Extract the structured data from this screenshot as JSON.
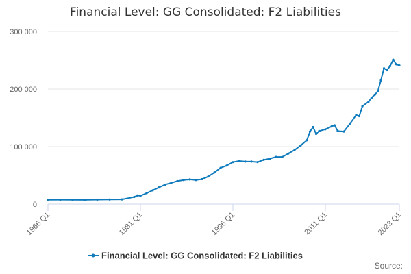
{
  "title": "Financial Level: GG Consolidated: F2 Liabilities",
  "source_label": "Source:",
  "colors": {
    "series": "#0f7bbd",
    "grid": "#e6e6e6",
    "axis": "#ccd6eb",
    "text": "#666666"
  },
  "chart_data": {
    "type": "line",
    "title": "Financial Level: GG Consolidated: F2 Liabilities",
    "xlabel": "",
    "ylabel": "",
    "x_range": [
      "1966 Q1",
      "2023 Q1"
    ],
    "xticks": [
      "1966 Q1",
      "1981 Q1",
      "1996 Q1",
      "2011 Q1",
      "2023 Q1"
    ],
    "ylim": [
      0,
      300000
    ],
    "yticks": [
      0,
      100000,
      200000,
      300000
    ],
    "ytick_labels": [
      "0",
      "100 000",
      "200 000",
      "300 000"
    ],
    "grid": true,
    "legend_position": "bottom",
    "series": [
      {
        "name": "Financial Level: GG Consolidated: F2 Liabilities",
        "marker": "circle",
        "points": [
          [
            "1966 Q1",
            7500
          ],
          [
            "1968 Q1",
            7600
          ],
          [
            "1970 Q1",
            7400
          ],
          [
            "1972 Q1",
            7300
          ],
          [
            "1974 Q1",
            7700
          ],
          [
            "1976 Q1",
            8000
          ],
          [
            "1978 Q1",
            8200
          ],
          [
            "1980 Q1",
            12500
          ],
          [
            "1980 Q3",
            15000
          ],
          [
            "1981 Q1",
            14500
          ],
          [
            "1982 Q1",
            19000
          ],
          [
            "1983 Q1",
            24000
          ],
          [
            "1984 Q1",
            29000
          ],
          [
            "1985 Q1",
            34000
          ],
          [
            "1986 Q1",
            37000
          ],
          [
            "1987 Q1",
            40000
          ],
          [
            "1988 Q1",
            42000
          ],
          [
            "1989 Q1",
            43000
          ],
          [
            "1990 Q1",
            42000
          ],
          [
            "1991 Q1",
            43500
          ],
          [
            "1992 Q1",
            48000
          ],
          [
            "1993 Q1",
            55000
          ],
          [
            "1994 Q1",
            63000
          ],
          [
            "1995 Q1",
            67000
          ],
          [
            "1996 Q1",
            73000
          ],
          [
            "1997 Q1",
            75000
          ],
          [
            "1998 Q1",
            74000
          ],
          [
            "1999 Q1",
            74000
          ],
          [
            "2000 Q1",
            73000
          ],
          [
            "2001 Q1",
            77000
          ],
          [
            "2002 Q1",
            79000
          ],
          [
            "2003 Q1",
            82000
          ],
          [
            "2004 Q1",
            82000
          ],
          [
            "2005 Q1",
            88000
          ],
          [
            "2006 Q1",
            94000
          ],
          [
            "2007 Q1",
            102000
          ],
          [
            "2008 Q1",
            111000
          ],
          [
            "2008 Q3",
            126000
          ],
          [
            "2009 Q1",
            134000
          ],
          [
            "2009 Q3",
            122000
          ],
          [
            "2010 Q1",
            127000
          ],
          [
            "2011 Q1",
            130000
          ],
          [
            "2012 Q1",
            135000
          ],
          [
            "2012 Q3",
            137000
          ],
          [
            "2013 Q1",
            127000
          ],
          [
            "2014 Q1",
            126000
          ],
          [
            "2015 Q1",
            140000
          ],
          [
            "2016 Q1",
            155000
          ],
          [
            "2016 Q3",
            153000
          ],
          [
            "2017 Q1",
            170000
          ],
          [
            "2018 Q1",
            178000
          ],
          [
            "2018 Q3",
            185000
          ],
          [
            "2019 Q1",
            190000
          ],
          [
            "2019 Q3",
            196000
          ],
          [
            "2020 Q1",
            215000
          ],
          [
            "2020 Q3",
            236000
          ],
          [
            "2021 Q1",
            233000
          ],
          [
            "2021 Q3",
            240000
          ],
          [
            "2022 Q1",
            251000
          ],
          [
            "2022 Q3",
            243000
          ],
          [
            "2023 Q1",
            241000
          ]
        ]
      }
    ]
  }
}
